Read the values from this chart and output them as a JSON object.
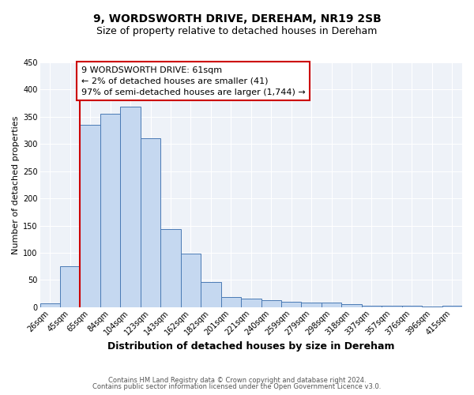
{
  "title": "9, WORDSWORTH DRIVE, DEREHAM, NR19 2SB",
  "subtitle": "Size of property relative to detached houses in Dereham",
  "xlabel": "Distribution of detached houses by size in Dereham",
  "ylabel": "Number of detached properties",
  "bar_labels": [
    "26sqm",
    "45sqm",
    "65sqm",
    "84sqm",
    "104sqm",
    "123sqm",
    "143sqm",
    "162sqm",
    "182sqm",
    "201sqm",
    "221sqm",
    "240sqm",
    "259sqm",
    "279sqm",
    "298sqm",
    "318sqm",
    "337sqm",
    "357sqm",
    "376sqm",
    "396sqm",
    "415sqm"
  ],
  "bar_heights": [
    7,
    75,
    335,
    355,
    368,
    310,
    143,
    99,
    46,
    18,
    16,
    12,
    10,
    9,
    8,
    5,
    3,
    3,
    2,
    1,
    3
  ],
  "bar_color": "#c5d8f0",
  "bar_edge_color": "#4a7ab5",
  "vline_color": "#cc0000",
  "vline_x_idx": 2,
  "annotation_lines": [
    "9 WORDSWORTH DRIVE: 61sqm",
    "← 2% of detached houses are smaller (41)",
    "97% of semi-detached houses are larger (1,744) →"
  ],
  "annotation_box_color": "#ffffff",
  "annotation_box_edge_color": "#cc0000",
  "ylim": [
    0,
    450
  ],
  "yticks": [
    0,
    50,
    100,
    150,
    200,
    250,
    300,
    350,
    400,
    450
  ],
  "footer_lines": [
    "Contains HM Land Registry data © Crown copyright and database right 2024.",
    "Contains public sector information licensed under the Open Government Licence v3.0."
  ],
  "plot_bg_color": "#eef2f8",
  "grid_color": "#ffffff",
  "title_fontsize": 10,
  "subtitle_fontsize": 9,
  "xlabel_fontsize": 9,
  "ylabel_fontsize": 8,
  "tick_fontsize": 7,
  "annotation_fontsize": 8,
  "footer_fontsize": 6
}
